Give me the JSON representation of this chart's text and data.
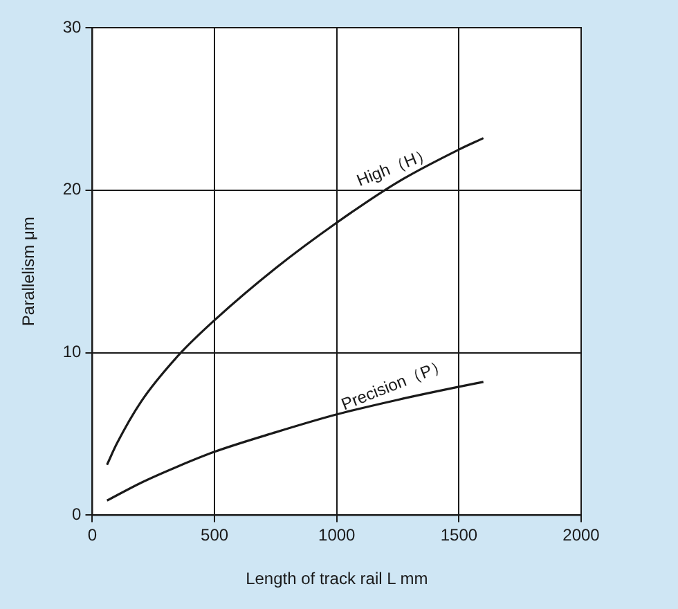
{
  "chart_data": {
    "type": "line",
    "xlabel": "Length of track rail L mm",
    "ylabel": "Parallelism μm",
    "xlim": [
      0,
      2000
    ],
    "xticks": [
      0,
      500,
      1000,
      1500,
      2000
    ],
    "ylim": [
      0,
      30
    ],
    "yticks": [
      0,
      10,
      20,
      30
    ],
    "grid": true,
    "marker": "none",
    "line_style": "solid",
    "series": [
      {
        "color": "#1a1a1a",
        "x": [
          60,
          100,
          200,
          350,
          500,
          750,
          1000,
          1250,
          1500,
          1600
        ],
        "values": [
          3.1,
          4.4,
          7,
          9.8,
          12,
          15.2,
          18,
          20.5,
          22.5,
          23.2
        ]
      },
      {
        "color": "#1a1a1a",
        "x": [
          60,
          200,
          350,
          500,
          750,
          1000,
          1250,
          1500,
          1600
        ],
        "values": [
          0.9,
          2,
          3,
          3.9,
          5.1,
          6.2,
          7.1,
          7.9,
          8.2
        ]
      }
    ],
    "annotations": [
      {
        "text": "High（H）",
        "x": 1250,
        "y": 20.5
      },
      {
        "text": "Precision（P）",
        "x": 1250,
        "y": 7.1
      }
    ]
  }
}
